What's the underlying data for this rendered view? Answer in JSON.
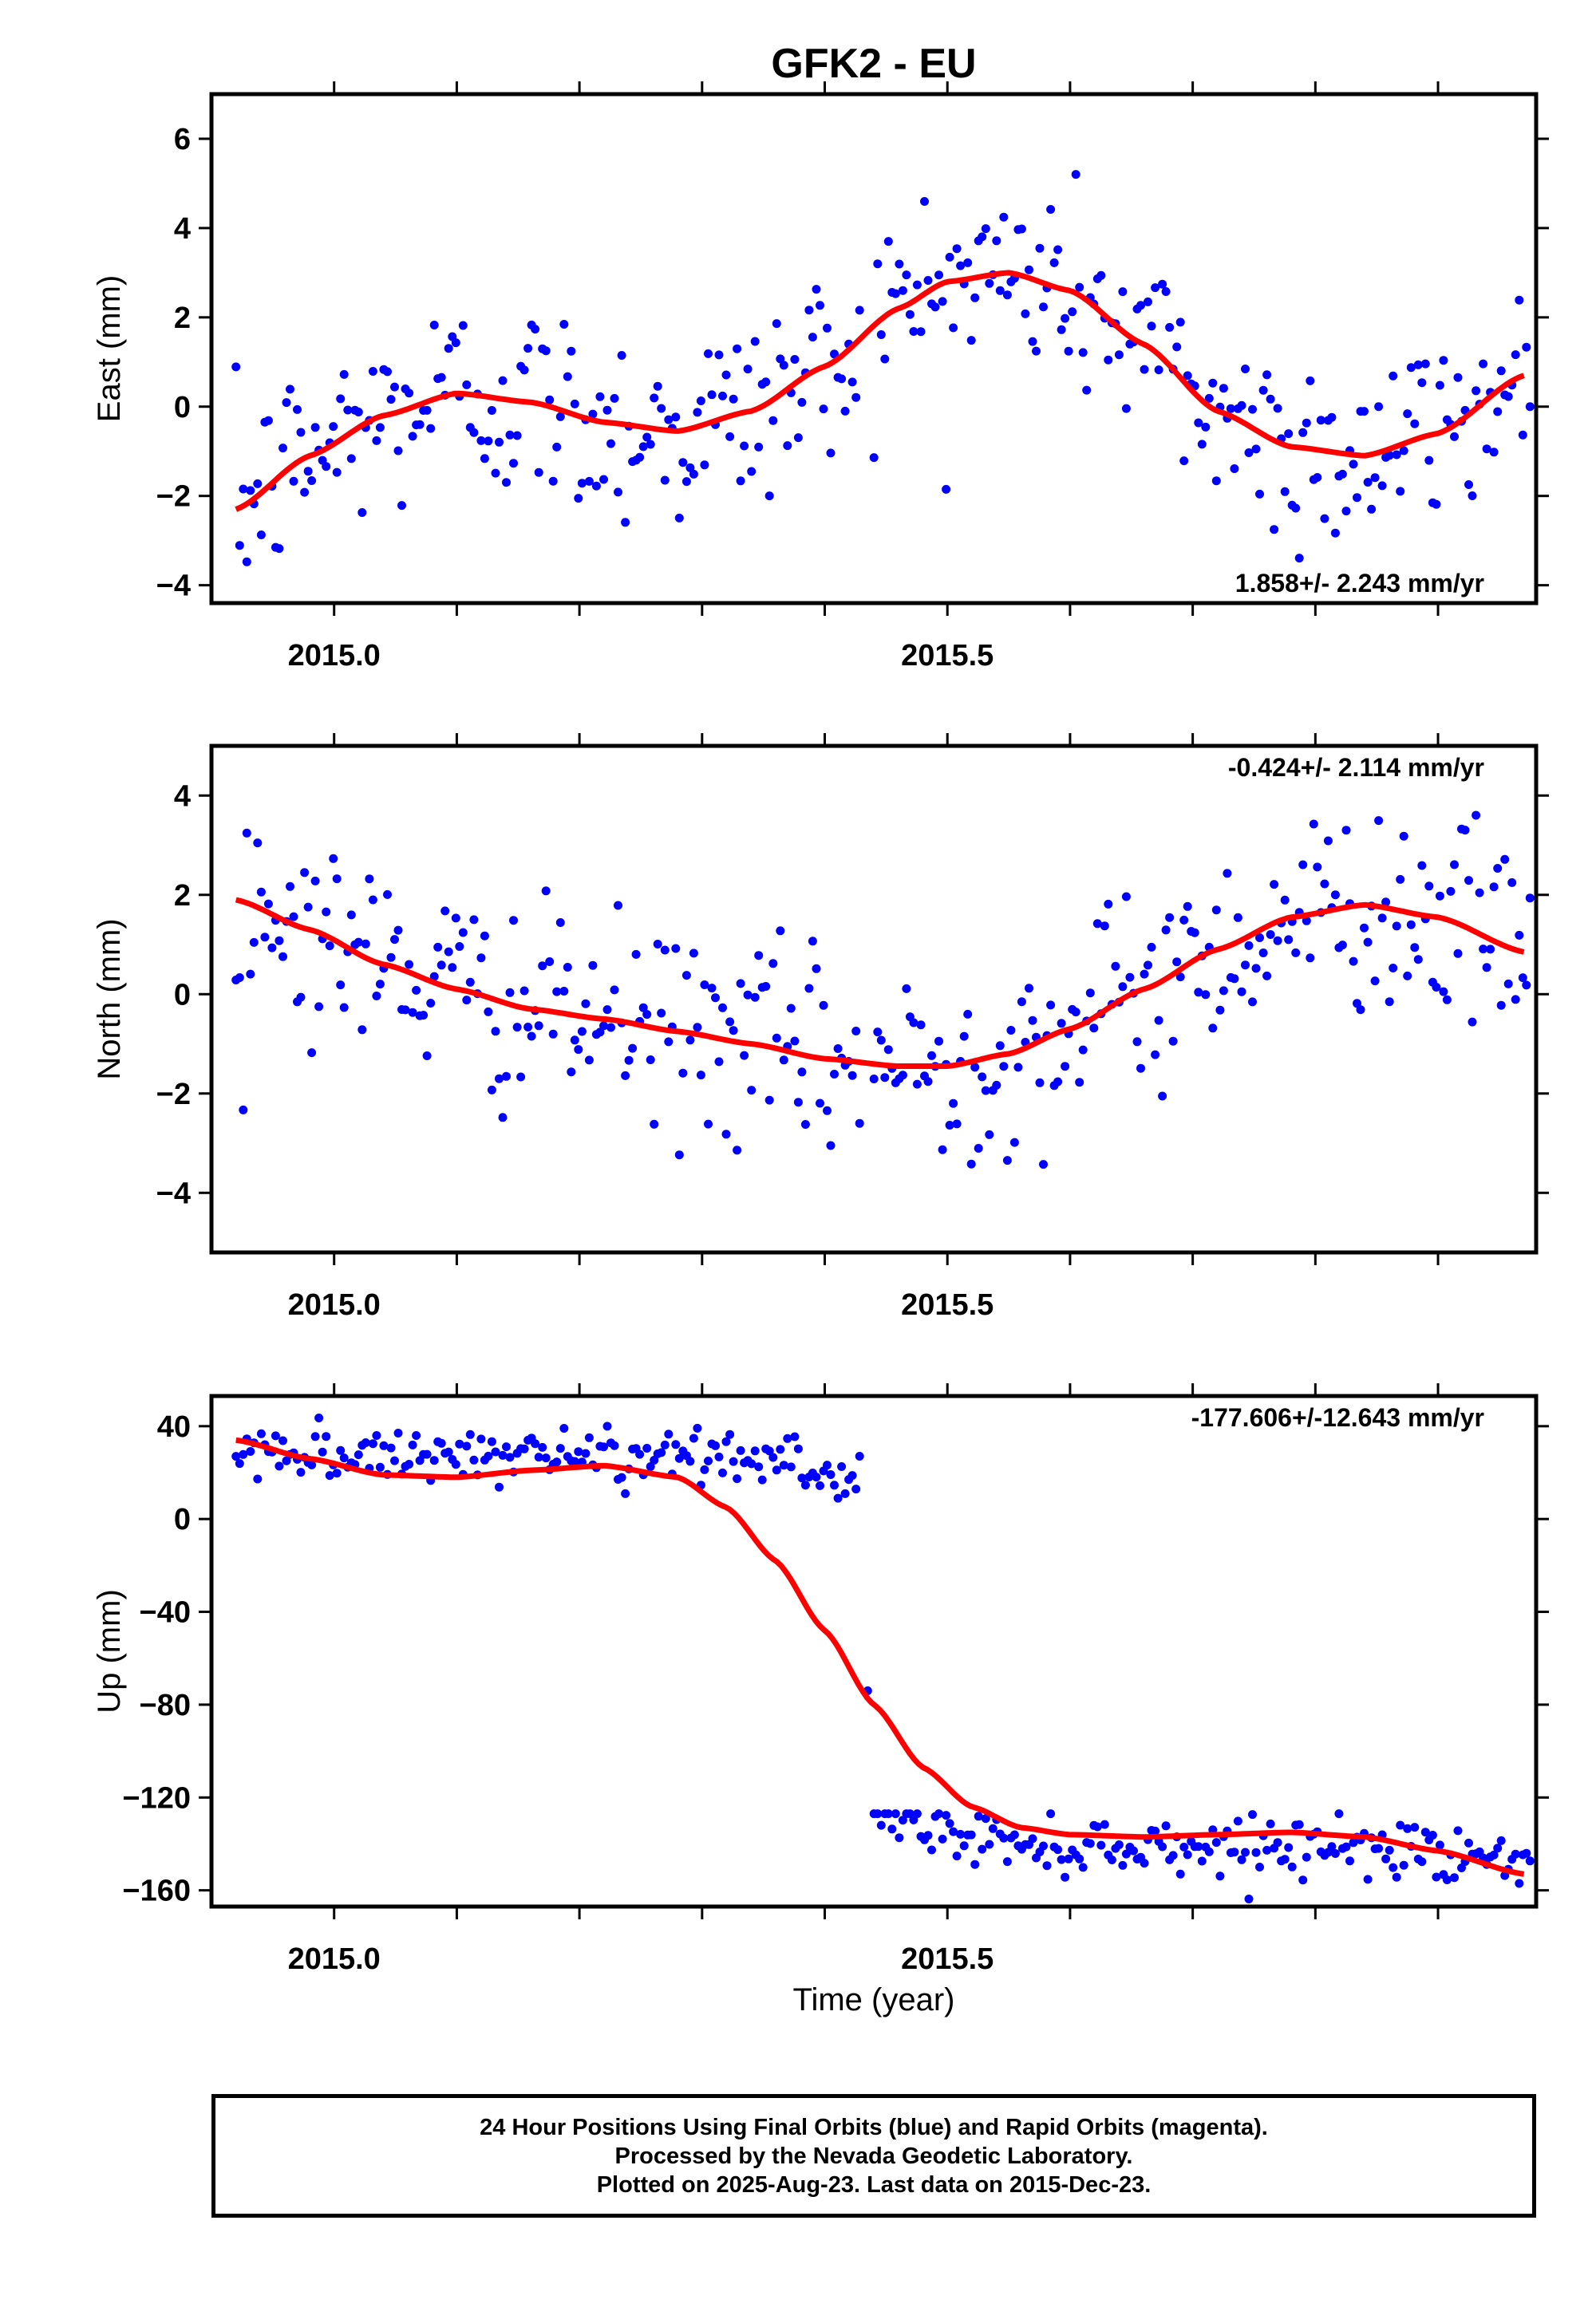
{
  "title": "GFK2 - EU",
  "xlabel": "Time (year)",
  "caption": [
    "24 Hour Positions Using Final Orbits (blue) and Rapid Orbits (magenta).",
    "Processed by the Nevada Geodetic Laboratory.",
    "Plotted on 2025-Aug-23. Last data on 2015-Dec-23."
  ],
  "colors": {
    "final_orbits": "#0000ff",
    "fit_curve": "#ff0000",
    "frame": "#000000"
  },
  "chart_data": [
    {
      "type": "scatter",
      "ylabel": "East (mm)",
      "rate_label": "1.858+/- 2.243 mm/yr",
      "rate_position": "bottom-right",
      "xlim": [
        2014.9,
        2015.98
      ],
      "ylim": [
        -4.4,
        7.0
      ],
      "x_ticks": [
        2015.0,
        2015.5
      ],
      "x_tick_labels": [
        "2015.0",
        "2015.5"
      ],
      "y_ticks": [
        -4,
        -2,
        0,
        2,
        4,
        6
      ],
      "y_tick_labels": [
        "−4",
        "−2",
        "0",
        "2",
        "4",
        "6"
      ],
      "fit_x": [
        2014.92,
        2014.98,
        2015.04,
        2015.1,
        2015.16,
        2015.22,
        2015.28,
        2015.34,
        2015.4,
        2015.46,
        2015.5,
        2015.55,
        2015.6,
        2015.66,
        2015.72,
        2015.78,
        2015.84,
        2015.9,
        2015.97
      ],
      "fit_y": [
        -2.3,
        -1.1,
        -0.2,
        0.3,
        0.1,
        -0.35,
        -0.55,
        -0.1,
        0.9,
        2.2,
        2.8,
        3.0,
        2.6,
        1.4,
        -0.1,
        -0.9,
        -1.1,
        -0.6,
        0.7
      ],
      "points": {
        "x_start": 2014.92,
        "x_end": 2015.975,
        "n": 360,
        "noise_sd": 1.15,
        "gap": [
          2015.43,
          2015.44
        ]
      }
    },
    {
      "type": "scatter",
      "ylabel": "North (mm)",
      "rate_label": "-0.424+/- 2.114 mm/yr",
      "rate_position": "top-right",
      "xlim": [
        2014.9,
        2015.98
      ],
      "ylim": [
        -5.2,
        5.0
      ],
      "x_ticks": [
        2015.0,
        2015.5
      ],
      "x_tick_labels": [
        "2015.0",
        "2015.5"
      ],
      "y_ticks": [
        -4,
        -2,
        0,
        2,
        4
      ],
      "y_tick_labels": [
        "−4",
        "−2",
        "0",
        "2",
        "4"
      ],
      "fit_x": [
        2014.92,
        2014.98,
        2015.04,
        2015.1,
        2015.16,
        2015.22,
        2015.28,
        2015.34,
        2015.4,
        2015.46,
        2015.5,
        2015.55,
        2015.6,
        2015.66,
        2015.72,
        2015.78,
        2015.84,
        2015.9,
        2015.97
      ],
      "fit_y": [
        1.9,
        1.3,
        0.6,
        0.1,
        -0.3,
        -0.5,
        -0.75,
        -1.0,
        -1.3,
        -1.45,
        -1.45,
        -1.2,
        -0.7,
        0.1,
        0.9,
        1.55,
        1.8,
        1.55,
        0.85
      ],
      "points": {
        "x_start": 2014.92,
        "x_end": 2015.975,
        "n": 360,
        "noise_sd": 1.0,
        "gap": [
          2015.43,
          2015.44
        ]
      }
    },
    {
      "type": "scatter",
      "ylabel": "Up (mm)",
      "rate_label": "-177.606+/-12.643 mm/yr",
      "rate_position": "top-right",
      "xlim": [
        2014.9,
        2015.98
      ],
      "ylim": [
        -167,
        53
      ],
      "x_ticks": [
        2015.0,
        2015.5
      ],
      "x_tick_labels": [
        "2015.0",
        "2015.5"
      ],
      "y_ticks": [
        40,
        0,
        -40,
        -80,
        -120,
        -160
      ],
      "y_tick_labels": [
        "40",
        "0",
        "−40",
        "−80",
        "−120",
        "−160"
      ],
      "fit_x": [
        2014.92,
        2014.98,
        2015.04,
        2015.1,
        2015.16,
        2015.22,
        2015.28,
        2015.32,
        2015.36,
        2015.4,
        2015.44,
        2015.48,
        2015.52,
        2015.56,
        2015.6,
        2015.66,
        2015.72,
        2015.78,
        2015.84,
        2015.9,
        2015.97
      ],
      "fit_y": [
        34,
        26,
        19,
        18,
        21,
        23,
        18,
        5,
        -18,
        -48,
        -80,
        -107,
        -124,
        -133,
        -136,
        -137,
        -136,
        -135,
        -137,
        -143,
        -153
      ],
      "points": {
        "x_start": 2014.92,
        "x_end": 2015.975,
        "n": 360,
        "noise_sd": 6,
        "gap": [
          2015.43,
          2015.44
        ],
        "before_level_range": [
          17,
          40
        ],
        "after_level_range": [
          -155,
          -133
        ],
        "outliers": [
          {
            "x": 2015.435,
            "y": -74
          }
        ]
      }
    }
  ]
}
